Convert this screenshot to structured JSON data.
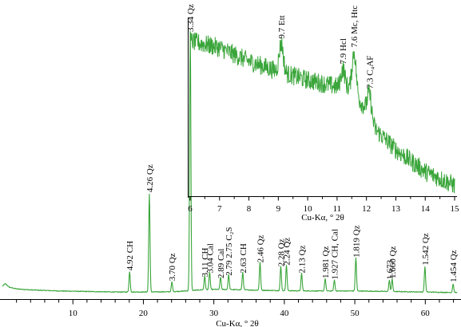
{
  "chart_data": [
    {
      "type": "line",
      "title": "",
      "xlabel": "Cu-Kα, ° 2θ",
      "ylabel": "",
      "xlim": [
        0,
        64.5
      ],
      "ylim": [
        0,
        1000
      ],
      "x_ticks": [
        10,
        20,
        30,
        40,
        50,
        60
      ],
      "grid": false,
      "series": [
        {
          "color": "#3aa53a",
          "background": [
            [
              0,
              40
            ],
            [
              0.4,
              50
            ],
            [
              1,
              36
            ],
            [
              2,
              30
            ],
            [
              4,
              26
            ],
            [
              8,
              22
            ],
            [
              12,
              20
            ],
            [
              16,
              18
            ],
            [
              20,
              18
            ],
            [
              24,
              19
            ],
            [
              26,
              22
            ],
            [
              28,
              26
            ],
            [
              30,
              28
            ],
            [
              33,
              27
            ],
            [
              36,
              25
            ],
            [
              40,
              23
            ],
            [
              45,
              22
            ],
            [
              50,
              22
            ],
            [
              55,
              20
            ],
            [
              60,
              18
            ],
            [
              64,
              16
            ],
            [
              64.5,
              16
            ]
          ],
          "peaks": [
            {
              "x": 18.05,
              "y": 85,
              "label": "4.92 CH"
            },
            {
              "x": 20.85,
              "y": 385,
              "label": "4.26 Qz"
            },
            {
              "x": 24.05,
              "y": 45,
              "label": "3.70 Qz"
            },
            {
              "x": 26.65,
              "y": 1000,
              "label": "3.34 Qz"
            },
            {
              "x": 28.7,
              "y": 60,
              "label": "3.11 CH"
            },
            {
              "x": 29.4,
              "y": 75,
              "label": "3.04 Cal"
            },
            {
              "x": 30.95,
              "y": 55,
              "label": "2.89 Cal"
            },
            {
              "x": 32.1,
              "y": 65,
              "label": "2.79 2.75 C₂S"
            },
            {
              "x": 34.1,
              "y": 75,
              "label": "2.63 CH"
            },
            {
              "x": 36.55,
              "y": 115,
              "label": "2.46 Qz"
            },
            {
              "x": 39.5,
              "y": 100,
              "label": "2.28 Qz"
            },
            {
              "x": 40.3,
              "y": 105,
              "label": "2.24 Qz"
            },
            {
              "x": 42.45,
              "y": 75,
              "label": "2.13 Qz"
            },
            {
              "x": 45.8,
              "y": 55,
              "label": "1.981 Qz"
            },
            {
              "x": 47.1,
              "y": 50,
              "label": "1.927 CH, Cal"
            },
            {
              "x": 50.15,
              "y": 135,
              "label": "1.819 Qz"
            },
            {
              "x": 54.9,
              "y": 50,
              "label": "1.673"
            },
            {
              "x": 55.3,
              "y": 55,
              "label": "1.660 Qz"
            },
            {
              "x": 59.95,
              "y": 105,
              "label": "1.542 Qz"
            },
            {
              "x": 63.95,
              "y": 40,
              "label": "1.454 Qz"
            }
          ]
        }
      ]
    },
    {
      "type": "line",
      "title": "",
      "xlabel": "Cu-Kα, ° 2θ",
      "ylabel": "",
      "xlim": [
        6,
        15
      ],
      "ylim": [
        0,
        100
      ],
      "x_ticks": [
        6,
        7,
        8,
        9,
        10,
        11,
        12,
        13,
        14,
        15
      ],
      "grid": false,
      "series": [
        {
          "color": "#3aa53a",
          "trend": [
            [
              6,
              90
            ],
            [
              7,
              86
            ],
            [
              8,
              78
            ],
            [
              9,
              72
            ],
            [
              10,
              67
            ],
            [
              11,
              63
            ],
            [
              11.4,
              62
            ],
            [
              11.9,
              52
            ],
            [
              12.3,
              38
            ],
            [
              13,
              26
            ],
            [
              14,
              13
            ],
            [
              15,
              5
            ]
          ],
          "peaks": [
            {
              "x": 9.1,
              "y": 17,
              "label": "9.7 Ett"
            },
            {
              "x": 11.2,
              "y": 11,
              "label": "7.9 Hcl"
            },
            {
              "x": 11.58,
              "y": 25,
              "label": "7.6 Mc, Htc"
            },
            {
              "x": 12.1,
              "y": 14,
              "label": "7.3 C₄AF"
            }
          ]
        }
      ]
    }
  ]
}
